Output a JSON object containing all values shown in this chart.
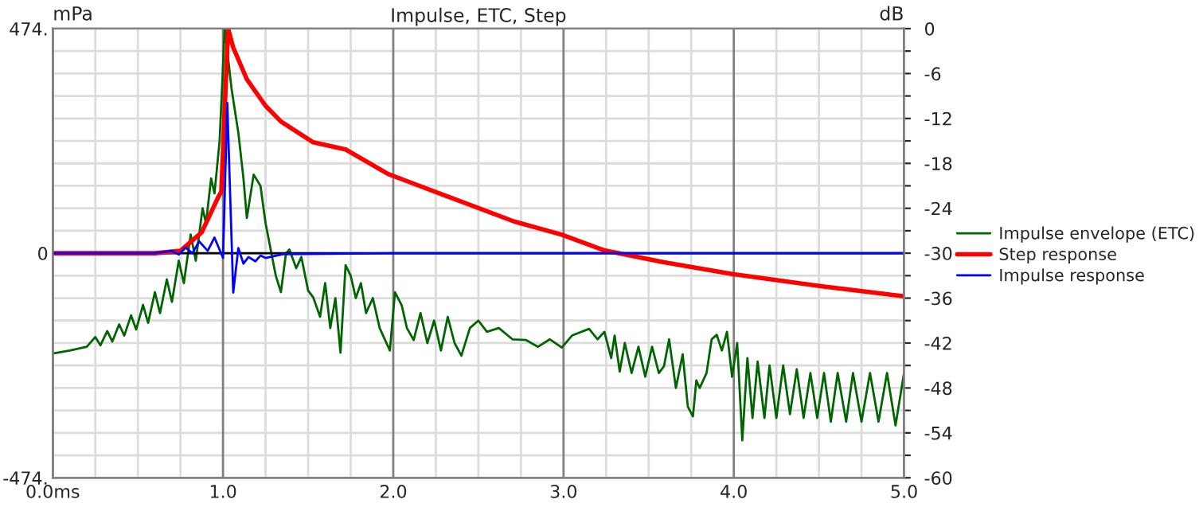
{
  "chart_data": {
    "type": "line",
    "title": "Impulse, ETC, Step",
    "ylabel": "mPa",
    "y2label": "dB",
    "xlim": [
      0,
      5
    ],
    "xticks": [
      {
        "value": 0,
        "label": "0.0ms"
      },
      {
        "value": 0.25,
        "label": null
      },
      {
        "value": 0.5,
        "label": null
      },
      {
        "value": 0.75,
        "label": null
      },
      {
        "value": 1,
        "label": "1.0"
      },
      {
        "value": 1.25,
        "label": null
      },
      {
        "value": 1.5,
        "label": null
      },
      {
        "value": 1.75,
        "label": null
      },
      {
        "value": 2,
        "label": "2.0"
      },
      {
        "value": 2.25,
        "label": null
      },
      {
        "value": 2.5,
        "label": null
      },
      {
        "value": 2.75,
        "label": null
      },
      {
        "value": 3,
        "label": "3.0"
      },
      {
        "value": 3.25,
        "label": null
      },
      {
        "value": 3.5,
        "label": null
      },
      {
        "value": 3.75,
        "label": null
      },
      {
        "value": 4,
        "label": "4.0"
      },
      {
        "value": 4.25,
        "label": null
      },
      {
        "value": 4.5,
        "label": null
      },
      {
        "value": 4.75,
        "label": null
      },
      {
        "value": 5,
        "label": "5.0"
      }
    ],
    "ylim": [
      -474,
      474
    ],
    "yticks": [
      {
        "value": -474,
        "label": "-474."
      },
      0,
      {
        "value": 474,
        "label": "474."
      }
    ],
    "y2lim": [
      -60,
      0
    ],
    "y2ticks": [
      -60,
      {
        "value": -57,
        "label": null
      },
      -54,
      {
        "value": -51,
        "label": null
      },
      -48,
      {
        "value": -45,
        "label": null
      },
      -42,
      {
        "value": -39,
        "label": null
      },
      -36,
      {
        "value": -33,
        "label": null
      },
      -30,
      {
        "value": -27,
        "label": null
      },
      -24,
      {
        "value": -21,
        "label": null
      },
      -18,
      {
        "value": -15,
        "label": null
      },
      -12,
      {
        "value": -9,
        "label": null
      },
      -6,
      {
        "value": -3,
        "label": null
      },
      0
    ],
    "grid": true,
    "legend": "right",
    "ref_lines": [
      {
        "axis": "y",
        "value": 0,
        "color": "#000000"
      }
    ],
    "series": [
      {
        "name": "Impulse envelope (ETC)",
        "color": "#006400",
        "axis": "y2",
        "x": [
          0.0,
          0.1,
          0.2,
          0.25,
          0.28,
          0.32,
          0.35,
          0.39,
          0.42,
          0.46,
          0.49,
          0.53,
          0.56,
          0.6,
          0.63,
          0.67,
          0.7,
          0.74,
          0.77,
          0.81,
          0.84,
          0.88,
          0.9,
          0.93,
          0.95,
          0.98,
          1.01,
          1.05,
          1.09,
          1.12,
          1.14,
          1.18,
          1.22,
          1.25,
          1.28,
          1.31,
          1.34,
          1.37,
          1.39,
          1.43,
          1.46,
          1.5,
          1.53,
          1.57,
          1.6,
          1.63,
          1.66,
          1.69,
          1.72,
          1.75,
          1.78,
          1.81,
          1.84,
          1.88,
          1.92,
          1.98,
          2.01,
          2.05,
          2.08,
          2.12,
          2.16,
          2.2,
          2.24,
          2.28,
          2.32,
          2.36,
          2.4,
          2.45,
          2.5,
          2.55,
          2.62,
          2.7,
          2.78,
          2.85,
          2.92,
          2.99,
          3.05,
          3.15,
          3.2,
          3.24,
          3.28,
          3.3,
          3.33,
          3.36,
          3.4,
          3.44,
          3.48,
          3.52,
          3.56,
          3.59,
          3.62,
          3.66,
          3.7,
          3.73,
          3.76,
          3.78,
          3.8,
          3.84,
          3.87,
          3.9,
          3.93,
          3.96,
          3.99,
          4.02,
          4.05,
          4.08,
          4.11,
          4.14,
          4.18,
          4.21,
          4.25,
          4.29,
          4.33,
          4.37,
          4.41,
          4.45,
          4.49,
          4.53,
          4.57,
          4.61,
          4.66,
          4.7,
          4.75,
          4.8,
          4.85,
          4.9,
          4.95,
          5.0
        ],
        "values": [
          -43.4,
          -43.0,
          -42.5,
          -41.2,
          -42.3,
          -40.4,
          -41.8,
          -39.5,
          -41.0,
          -38.3,
          -40.2,
          -36.9,
          -39.3,
          -35.2,
          -38.0,
          -33.5,
          -36.5,
          -31.0,
          -34.0,
          -27.5,
          -31.0,
          -24.0,
          -26.0,
          -20.0,
          -22.0,
          -15.0,
          0,
          -8.0,
          -13.9,
          -20,
          -25.3,
          -19.5,
          -21,
          -26,
          -29.5,
          -33,
          -35.2,
          -30,
          -29.5,
          -32,
          -30.5,
          -35,
          -35.9,
          -38.5,
          -34,
          -40,
          -36,
          -43.3,
          -31.6,
          -33,
          -36,
          -34,
          -38,
          -36,
          -40,
          -43,
          -35.2,
          -37,
          -40,
          -41.6,
          -38,
          -42,
          -39,
          -43,
          -38.5,
          -42,
          -43.7,
          -40,
          -39,
          -40.5,
          -40,
          -41.5,
          -41.6,
          -42.5,
          -41.5,
          -42.6,
          -41,
          -40.1,
          -41.5,
          -40.5,
          -44,
          -41,
          -45.8,
          -42,
          -46,
          -42.5,
          -46.5,
          -42.5,
          -46,
          -45.1,
          -41.5,
          -48,
          -43.5,
          -50.5,
          -51.8,
          -47,
          -48,
          -46,
          -41.5,
          -40.9,
          -43,
          -40.5,
          -46.5,
          -42,
          -55,
          -44,
          -52,
          -44.5,
          -52,
          -45,
          -52,
          -45,
          -51.5,
          -45.5,
          -52,
          -46,
          -52,
          -46,
          -52.5,
          -46,
          -52.5,
          -46,
          -52.5,
          -46,
          -52.5,
          -46,
          -53,
          -46
        ]
      },
      {
        "name": "Step response",
        "color": "#ff0000",
        "axis": "y",
        "x": [
          0,
          0.6,
          0.75,
          0.875,
          0.97,
          0.99,
          1.03,
          1.06,
          1.14,
          1.25,
          1.34,
          1.53,
          1.72,
          1.97,
          2.31,
          2.71,
          2.99,
          3.24,
          3.59,
          3.99,
          4.52,
          5.0
        ],
        "values": [
          0,
          0,
          5,
          44,
          117,
          130,
          474,
          434,
          367,
          311,
          278,
          234,
          219,
          167,
          121,
          67,
          39,
          6,
          -19,
          -44,
          -70,
          -91
        ]
      },
      {
        "name": "Impulse response",
        "color": "#0000ff",
        "axis": "y",
        "x": [
          0,
          0.6,
          0.7,
          0.74,
          0.78,
          0.82,
          0.86,
          0.91,
          0.95,
          1.0,
          1.025,
          1.06,
          1.09,
          1.12,
          1.15,
          1.19,
          1.22,
          1.25,
          1.35,
          2.0,
          3.0,
          4.0,
          5.0
        ],
        "values": [
          0,
          0,
          5,
          -3,
          12,
          0,
          25,
          5,
          33,
          -10,
          317,
          -83,
          11,
          -22,
          -8,
          -17,
          -5,
          -10,
          -2,
          0,
          0,
          0,
          0
        ]
      }
    ]
  }
}
